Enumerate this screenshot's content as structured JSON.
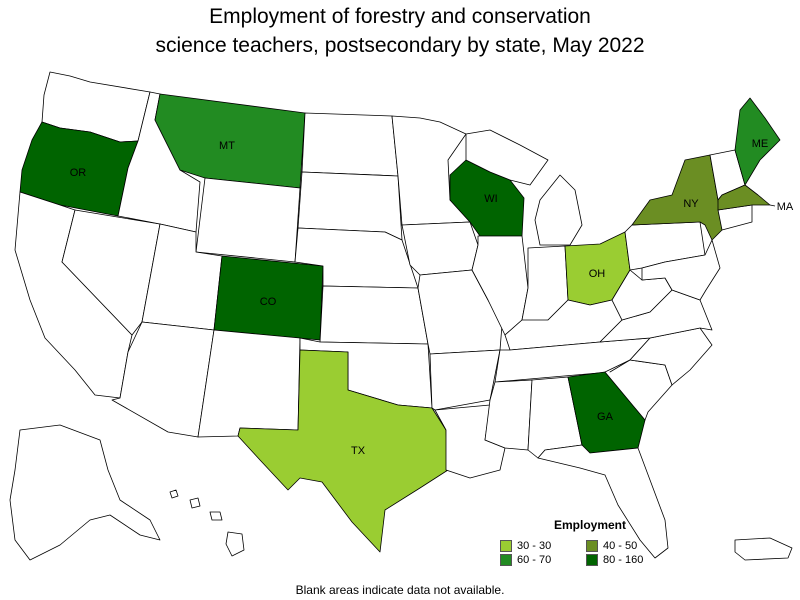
{
  "title_line1": "Employment of forestry and conservation",
  "title_line2": "science teachers, postsecondary by state, May 2022",
  "legend": {
    "title": "Employment",
    "items": [
      {
        "label": "30 - 30",
        "color": "#9acd32"
      },
      {
        "label": "40 - 50",
        "color": "#6b8e23"
      },
      {
        "label": "60 - 70",
        "color": "#228b22"
      },
      {
        "label": "80 - 160",
        "color": "#006400"
      }
    ]
  },
  "footnote": "Blank areas indicate data not available.",
  "states": [
    {
      "abbr": "OR",
      "range": "80 - 160"
    },
    {
      "abbr": "MT",
      "range": "60 - 70"
    },
    {
      "abbr": "CO",
      "range": "80 - 160"
    },
    {
      "abbr": "TX",
      "range": "30 - 30"
    },
    {
      "abbr": "WI",
      "range": "80 - 160"
    },
    {
      "abbr": "OH",
      "range": "30 - 30"
    },
    {
      "abbr": "GA",
      "range": "80 - 160"
    },
    {
      "abbr": "NY",
      "range": "40 - 50"
    },
    {
      "abbr": "ME",
      "range": "60 - 70"
    },
    {
      "abbr": "MA",
      "range": "40 - 50"
    }
  ]
}
